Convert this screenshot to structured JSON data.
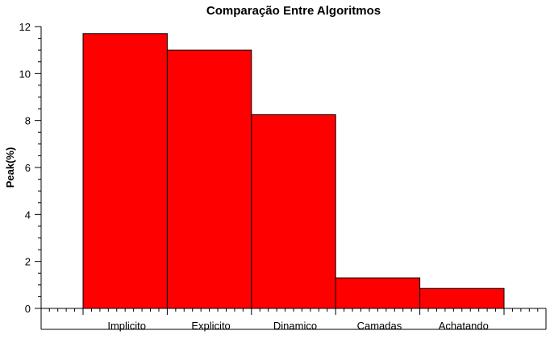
{
  "chart_data": {
    "type": "bar",
    "title": "Comparação Entre Algoritmos",
    "xlabel": "",
    "ylabel": "Peak(%)",
    "categories": [
      "Implicito",
      "Explicito",
      "Dinamico",
      "Camadas",
      "Achatando"
    ],
    "values": [
      11.7,
      11.0,
      8.25,
      1.3,
      0.85
    ],
    "ylim": [
      0,
      12
    ],
    "yticks": [
      0,
      2,
      4,
      6,
      8,
      10,
      12
    ],
    "grid": false,
    "legend": "none",
    "colors": {
      "bar_fill": "#ff0000",
      "bar_stroke": "#000000",
      "axis": "#000000"
    }
  }
}
